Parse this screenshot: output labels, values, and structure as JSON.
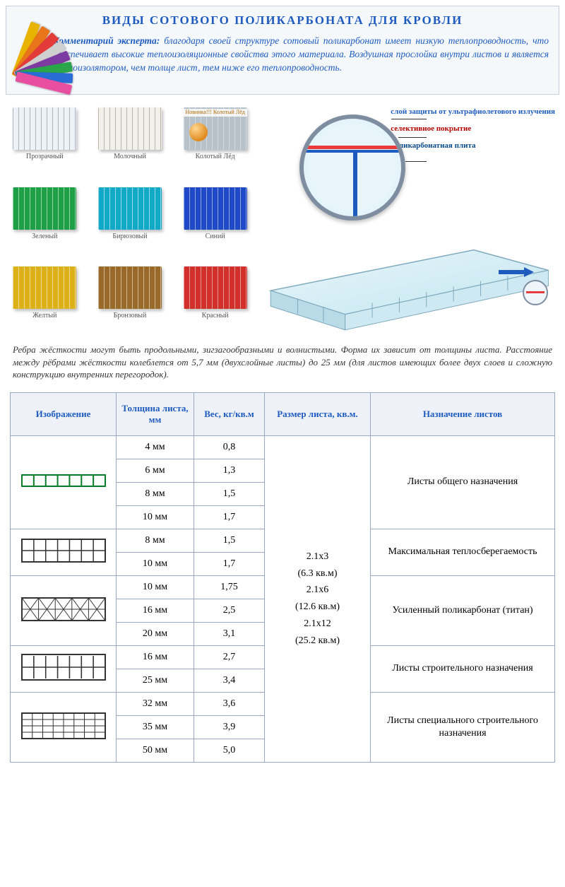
{
  "title": "ВИДЫ СОТОВОГО ПОЛИКАРБОНАТА ДЛЯ КРОВЛИ",
  "expert": {
    "lead": "Комментарий эксперта:",
    "text": "благодаря своей структуре сотовый поликарбонат имеет низкую теплопроводность, что обеспечивает высокие теплоизоляционные свойства этого материала. Воздушная прослойка внутри листов и является теплоизолятором, чем толще лист, тем ниже его теплопроводность."
  },
  "fan_colors": [
    "#e9b400",
    "#e9751a",
    "#e33a3a",
    "#cfcfcf",
    "#7d3aa1",
    "#2aa54a",
    "#2a6cd5",
    "#e94fa1"
  ],
  "swatches": [
    {
      "label": "Прозрачный",
      "bg": "#eef2f6",
      "lines": "rgba(120,140,160,0.6)"
    },
    {
      "label": "Молочный",
      "bg": "#f2f0ea",
      "lines": "rgba(150,140,120,0.6)"
    },
    {
      "label": "Колотый Лёд",
      "bg": "#b7c1c9",
      "lines": "rgba(255,255,255,0.4)",
      "novinka": "Новинка!!! Колотый Лёд"
    },
    {
      "label": "Зеленый",
      "bg": "#1e9e45",
      "lines": "rgba(255,255,255,0.55)"
    },
    {
      "label": "Бирюзовый",
      "bg": "#12a8c7",
      "lines": "rgba(255,255,255,0.55)"
    },
    {
      "label": "Синий",
      "bg": "#1e49c7",
      "lines": "rgba(255,255,255,0.5)"
    },
    {
      "label": "Желтый",
      "bg": "#dcb018",
      "lines": "rgba(255,255,255,0.55)"
    },
    {
      "label": "Бронзовый",
      "bg": "#9a6a2b",
      "lines": "rgba(255,255,255,0.5)"
    },
    {
      "label": "Красный",
      "bg": "#d12f2a",
      "lines": "rgba(255,255,255,0.5)"
    }
  ],
  "callouts": {
    "uv": "слой защиты от ультрафиолетового излучения",
    "selective": "селективное покрытие",
    "plate": "поликарбонатная плита"
  },
  "rib_note": "Ребра жёсткости могут быть продольными, зигзагообразными и волнистыми. Форма их зависит от толщины листа. Расстояние между рёбрами жёсткости колеблется от 5,7 мм (двухслойные листы) до 25 мм (для листов имеющих более двух слоев и сложную конструкцию внутренних перегородок).",
  "table": {
    "headers": {
      "image": "Изображение",
      "thickness": "Толщина листа, мм",
      "weight": "Вес, кг/кв.м",
      "size": "Размер листа, кв.м.",
      "purpose": "Назначение листов"
    },
    "size_text": "2.1x3\n(6.3 кв.м)\n2.1x6\n(12.6 кв.м)\n2.1x12\n(25.2 кв.м)",
    "groups": [
      {
        "profile": "p2wall-green",
        "purpose": "Листы общего назначения",
        "rows": [
          {
            "th": "4 мм",
            "wt": "0,8"
          },
          {
            "th": "6 мм",
            "wt": "1,3"
          },
          {
            "th": "8 мм",
            "wt": "1,5"
          },
          {
            "th": "10 мм",
            "wt": "1,7"
          }
        ]
      },
      {
        "profile": "p3wall",
        "purpose": "Максимальная теплосберегаемость",
        "rows": [
          {
            "th": "8 мм",
            "wt": "1,5"
          },
          {
            "th": "10 мм",
            "wt": "1,7"
          }
        ]
      },
      {
        "profile": "pX",
        "purpose": "Усиленный поликарбонат (титан)",
        "rows": [
          {
            "th": "10 мм",
            "wt": "1,75"
          },
          {
            "th": "16 мм",
            "wt": "2,5"
          },
          {
            "th": "20 мм",
            "wt": "3,1"
          }
        ]
      },
      {
        "profile": "p3wall-thick",
        "purpose": "Листы строительного назначения",
        "rows": [
          {
            "th": "16 мм",
            "wt": "2,7"
          },
          {
            "th": "25 мм",
            "wt": "3,4"
          }
        ]
      },
      {
        "profile": "p5wall",
        "purpose": "Листы специального строительного назначения",
        "rows": [
          {
            "th": "32 мм",
            "wt": "3,6"
          },
          {
            "th": "35 мм",
            "wt": "3,9"
          },
          {
            "th": "50 мм",
            "wt": "5,0"
          }
        ]
      }
    ]
  }
}
